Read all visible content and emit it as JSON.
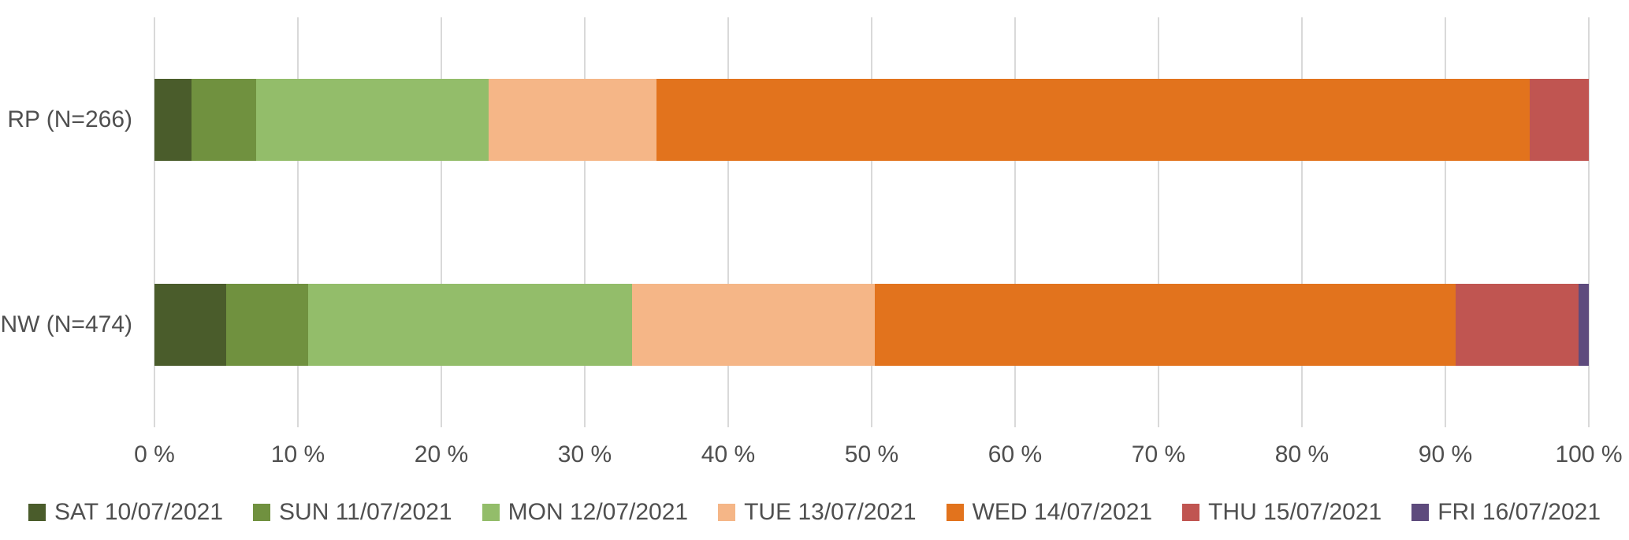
{
  "chart_data": {
    "type": "bar",
    "orientation": "horizontal",
    "stacked": true,
    "normalized_100_percent": true,
    "title": "",
    "categories": [
      "RP (N=266)",
      "NW (N=474)"
    ],
    "category_keys": [
      "rp",
      "nw"
    ],
    "series": [
      {
        "key": "sat",
        "name": "SAT 10/07/2021",
        "color": "#4a5c2b",
        "values": [
          2.6,
          5.0
        ]
      },
      {
        "key": "sun",
        "name": "SUN 11/07/2021",
        "color": "#70913f",
        "values": [
          4.5,
          5.7
        ]
      },
      {
        "key": "mon",
        "name": "MON 12/07/2021",
        "color": "#93bd6a",
        "values": [
          16.2,
          22.6
        ]
      },
      {
        "key": "tue",
        "name": "TUE 13/07/2021",
        "color": "#f5b687",
        "values": [
          11.7,
          16.9
        ]
      },
      {
        "key": "wed",
        "name": "WED 14/07/2021",
        "color": "#e2731d",
        "values": [
          60.9,
          40.5
        ]
      },
      {
        "key": "thu",
        "name": "THU 15/07/2021",
        "color": "#c05551",
        "values": [
          4.1,
          8.6
        ]
      },
      {
        "key": "fri",
        "name": "FRI 16/07/2021",
        "color": "#5e4b7d",
        "values": [
          0.0,
          0.7
        ]
      }
    ],
    "values_unit": "%",
    "x_axis": {
      "min": 0,
      "max": 100,
      "step": 10,
      "tick_labels": [
        "0 %",
        "10 %",
        "20 %",
        "30 %",
        "40 %",
        "50 %",
        "60 %",
        "70 %",
        "80 %",
        "90 %",
        "100 %"
      ]
    },
    "grid": "vertical",
    "gridline_color": "#d9d9d9",
    "text_color": "#4f4f4f",
    "background_color": "#ffffff",
    "legend_position": "bottom"
  }
}
